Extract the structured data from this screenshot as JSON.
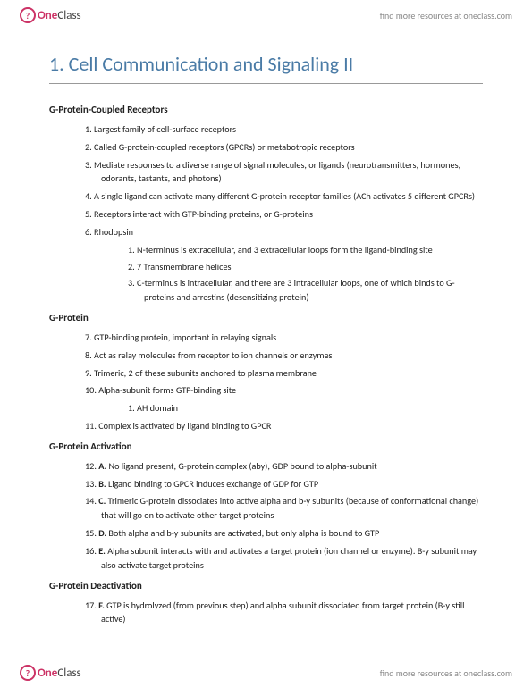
{
  "brand": {
    "one": "One",
    "class": "Class",
    "circle_letter": "?"
  },
  "header_link": "find more resources at oneclass.com",
  "footer_link": "find more resources at oneclass.com",
  "title": "1. Cell Communication and Signaling II",
  "sections": [
    {
      "heading": "G-Protein-Coupled Receptors",
      "items": [
        {
          "n": "1.",
          "text": "Largest family of cell-surface receptors"
        },
        {
          "n": "2.",
          "text": "Called G-protein-coupled receptors (GPCRs) or metabotropic receptors"
        },
        {
          "n": "3.",
          "text": "Mediate responses to a diverse range of signal molecules, or ligands (neurotransmitters, hormones, odorants, tastants, and photons)"
        },
        {
          "n": "4.",
          "text": "A single ligand can activate many different G-protein receptor families (ACh activates 5 different GPCRs)"
        },
        {
          "n": "5.",
          "text": "Receptors interact with GTP-binding proteins, or G-proteins"
        },
        {
          "n": "6.",
          "text": "Rhodopsin",
          "sub": [
            {
              "n": "1.",
              "text": "N-terminus is extracellular, and 3 extracellular loops form the ligand-binding site"
            },
            {
              "n": "2.",
              "text": "7 Transmembrane helices"
            },
            {
              "n": "3.",
              "text": "C-terminus is intracellular, and there are 3 intracellular loops, one of which binds to G-proteins and arrestins (desensitizing protein)"
            }
          ]
        }
      ]
    },
    {
      "heading": "G-Protein",
      "items": [
        {
          "n": "7.",
          "text": "GTP-binding protein, important in relaying signals"
        },
        {
          "n": "8.",
          "text": "Act as relay molecules from receptor to ion channels or enzymes"
        },
        {
          "n": "9.",
          "text": "Trimeric, 2 of these subunits anchored to plasma membrane"
        },
        {
          "n": "10.",
          "text": "Alpha-subunit forms GTP-binding site",
          "sub": [
            {
              "n": "1.",
              "text": "AH domain"
            }
          ]
        },
        {
          "n": "11.",
          "text": "Complex is activated by ligand binding to GPCR"
        }
      ]
    },
    {
      "heading": "G-Protein Activation",
      "items": [
        {
          "n": "12.",
          "lead": "A.",
          "text": " No ligand present, G-protein complex (aby), GDP bound to alpha-subunit"
        },
        {
          "n": "13.",
          "lead": "B.",
          "text": " Ligand binding to GPCR induces exchange of GDP for GTP"
        },
        {
          "n": "14.",
          "lead": "C.",
          "text": " Trimeric G-protein dissociates into active alpha and b-y subunits (because of conformational change) that will go on to activate other target proteins"
        },
        {
          "n": "15.",
          "lead": "D.",
          "text": " Both alpha and b-y subunits are activated, but only alpha is bound to GTP"
        },
        {
          "n": "16.",
          "lead": "E.",
          "text": " Alpha subunit interacts with and activates a target protein (ion channel or enzyme). B-y subunit may also activate target proteins"
        }
      ]
    },
    {
      "heading": "G-Protein Deactivation",
      "items": [
        {
          "n": "17.",
          "lead": "F.",
          "text": " GTP is hydrolyzed (from previous step) and alpha subunit dissociated from target protein (B-y still active)"
        }
      ]
    }
  ]
}
